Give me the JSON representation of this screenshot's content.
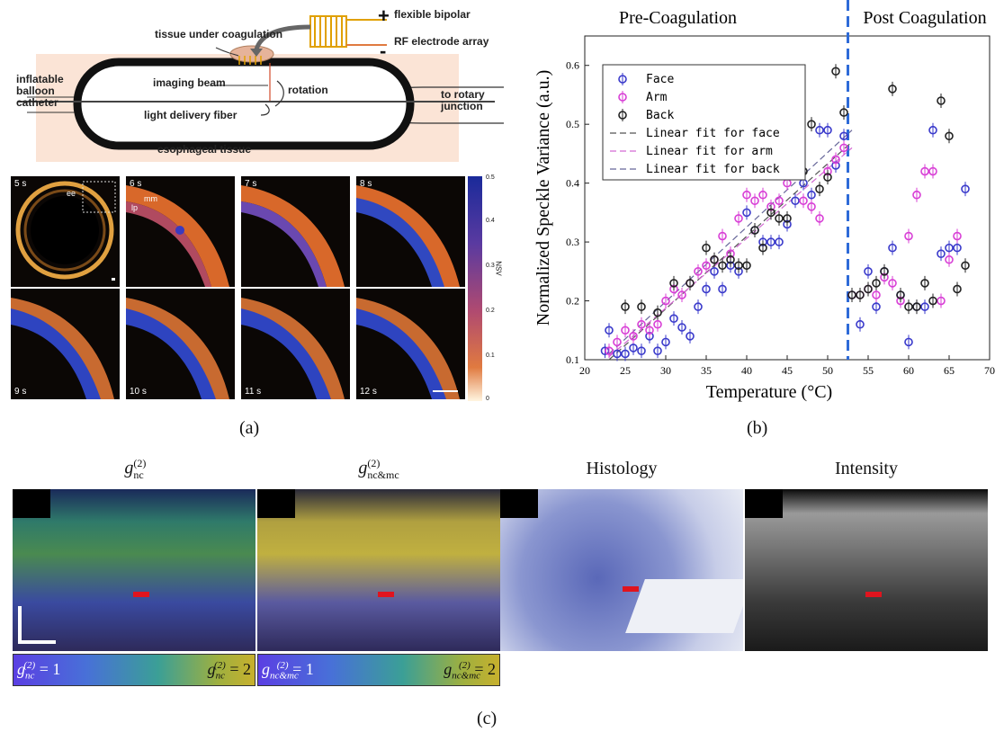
{
  "panel_a": {
    "schematic_labels": {
      "tissue_under_coagulation": "tissue under coagulation",
      "flexible_bipolar": "flexible bipolar",
      "rf_electrode_array": "RF electrode array",
      "plus": "+",
      "minus": "-",
      "inflatable_balloon_catheter": "inflatable balloon catheter",
      "imaging_beam": "imaging beam",
      "rotation": "rotation",
      "light_delivery_fiber": "light delivery fiber",
      "to_rotary_junction": "to rotary junction",
      "esophageal_tissue": "esophageal tissue"
    },
    "tiles": [
      "5 s",
      "6 s",
      "7 s",
      "8 s",
      "9 s",
      "10 s",
      "11 s",
      "12 s"
    ],
    "tile_annotations": {
      "ee": "ee",
      "mm": "mm",
      "lp": "lp"
    },
    "colorbar": {
      "ticks": [
        "0.5",
        "0.4",
        "0.3",
        "0.2",
        "0.1",
        "0"
      ],
      "label": "NSV"
    },
    "label": "(a)"
  },
  "panel_b": {
    "label": "(b)",
    "chart_data": {
      "type": "scatter",
      "xlabel": "Temperature (°C)",
      "ylabel": "Normalized Speckle Variance (a.u.)",
      "xlim": [
        20,
        70
      ],
      "ylim": [
        0.1,
        0.65
      ],
      "xticks": [
        "20",
        "25",
        "30",
        "35",
        "40",
        "45",
        "50",
        "55",
        "60",
        "65",
        "70"
      ],
      "yticks": [
        "0.1",
        "0.2",
        "0.3",
        "0.4",
        "0.5",
        "0.6"
      ],
      "region_labels": [
        "Pre-Coagulation",
        "Post Coagulation"
      ],
      "coagulation_line_x": 52.5,
      "legend_position": "top-left",
      "series": [
        {
          "name": "Face",
          "color": "#3a3acb",
          "x": [
            22.5,
            23,
            24,
            25,
            26,
            27,
            28,
            29,
            30,
            31,
            32,
            33,
            34,
            35,
            36,
            37,
            38,
            39,
            40,
            41,
            42,
            43,
            44,
            45,
            46,
            47,
            48,
            49,
            50,
            51,
            52,
            53,
            54,
            55,
            56,
            57,
            58,
            59,
            60,
            61,
            62,
            63,
            64,
            65,
            66,
            67
          ],
          "y": [
            0.115,
            0.15,
            0.11,
            0.11,
            0.12,
            0.115,
            0.14,
            0.115,
            0.13,
            0.17,
            0.155,
            0.14,
            0.19,
            0.22,
            0.25,
            0.22,
            0.26,
            0.25,
            0.35,
            0.32,
            0.3,
            0.3,
            0.3,
            0.33,
            0.37,
            0.4,
            0.38,
            0.49,
            0.49,
            0.43,
            0.48,
            0.21,
            0.16,
            0.25,
            0.19,
            0.25,
            0.29,
            0.21,
            0.13,
            0.19,
            0.19,
            0.49,
            0.28,
            0.29,
            0.29,
            0.39
          ]
        },
        {
          "name": "Arm",
          "color": "#d83fd6",
          "x": [
            23,
            24,
            25,
            26,
            27,
            28,
            29,
            30,
            31,
            32,
            33,
            34,
            35,
            36,
            37,
            38,
            39,
            40,
            41,
            42,
            43,
            44,
            45,
            46,
            47,
            48,
            49,
            50,
            51,
            52,
            53,
            54,
            55,
            56,
            57,
            58,
            59,
            60,
            61,
            62,
            63,
            64,
            65,
            66
          ],
          "y": [
            0.115,
            0.13,
            0.15,
            0.14,
            0.16,
            0.15,
            0.16,
            0.2,
            0.22,
            0.21,
            0.23,
            0.25,
            0.26,
            0.27,
            0.31,
            0.28,
            0.34,
            0.38,
            0.37,
            0.38,
            0.36,
            0.37,
            0.4,
            0.42,
            0.37,
            0.36,
            0.34,
            0.42,
            0.44,
            0.46,
            0.21,
            0.21,
            0.22,
            0.21,
            0.24,
            0.23,
            0.2,
            0.31,
            0.38,
            0.42,
            0.42,
            0.2,
            0.27,
            0.31
          ]
        },
        {
          "name": "Back",
          "color": "#222222",
          "x": [
            25,
            27,
            29,
            31,
            33,
            35,
            36,
            37,
            38,
            39,
            40,
            41,
            42,
            43,
            44,
            45,
            46,
            47,
            48,
            49,
            50,
            51,
            52,
            53,
            54,
            55,
            56,
            57,
            58,
            59,
            60,
            61,
            62,
            63,
            64,
            65,
            66,
            67
          ],
          "y": [
            0.19,
            0.19,
            0.18,
            0.23,
            0.23,
            0.29,
            0.27,
            0.26,
            0.27,
            0.26,
            0.26,
            0.32,
            0.29,
            0.35,
            0.34,
            0.34,
            0.43,
            0.42,
            0.5,
            0.39,
            0.41,
            0.59,
            0.52,
            0.21,
            0.21,
            0.22,
            0.23,
            0.25,
            0.56,
            0.21,
            0.19,
            0.19,
            0.23,
            0.2,
            0.54,
            0.48,
            0.22,
            0.26
          ]
        }
      ],
      "fits": [
        {
          "name": "Linear fit for face",
          "color": "#555555",
          "x": [
            23,
            53
          ],
          "y": [
            0.1,
            0.47
          ]
        },
        {
          "name": "Linear fit for arm",
          "color": "#d36bd3",
          "x": [
            23,
            53
          ],
          "y": [
            0.105,
            0.46
          ]
        },
        {
          "name": "Linear fit for back",
          "color": "#666699",
          "x": [
            23,
            53
          ],
          "y": [
            0.11,
            0.49
          ]
        }
      ]
    }
  },
  "panel_c": {
    "label": "(c)",
    "titles": [
      "g_nc^(2)",
      "g_nc&mc^(2)",
      "Histology",
      "Intensity"
    ],
    "title_text": {
      "g_nc": "g",
      "g_nc_sub": "nc",
      "g_nc_sup": "(2)",
      "g_ncmc": "g",
      "g_ncmc_sub": "nc&mc",
      "g_ncmc_sup": "(2)",
      "histology": "Histology",
      "intensity": "Intensity"
    },
    "colorbars": [
      {
        "left": "g",
        "left_sub": "nc",
        "left_sup": "(2)",
        "left_val": " = 1",
        "right": "g",
        "right_sub": "nc",
        "right_sup": "(2)",
        "right_val": " = 2"
      },
      {
        "left": "g",
        "left_sub": "nc&mc",
        "left_sup": "(2)",
        "left_val": " = 1",
        "right": "g",
        "right_sub": "nc&mc",
        "right_sup": "(2)",
        "right_val": " = 2"
      }
    ]
  }
}
